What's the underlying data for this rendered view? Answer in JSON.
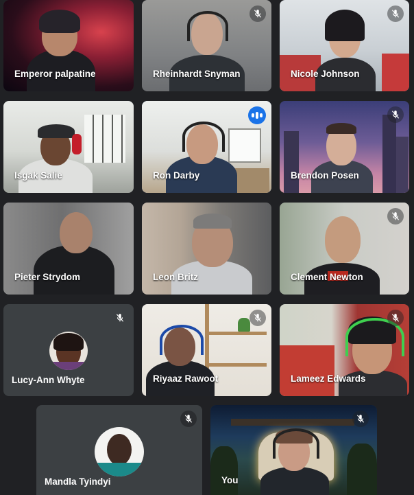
{
  "participants": [
    {
      "name": "Emperor palpatine",
      "muted": false,
      "speaking": false
    },
    {
      "name": "Rheinhardt Snyman",
      "muted": true,
      "speaking": false
    },
    {
      "name": "Nicole Johnson",
      "muted": true,
      "speaking": false
    },
    {
      "name": "Isgak Salie",
      "muted": false,
      "speaking": false
    },
    {
      "name": "Ron Darby",
      "muted": false,
      "speaking": true
    },
    {
      "name": "Brendon Posen",
      "muted": true,
      "speaking": false
    },
    {
      "name": "Pieter Strydom",
      "muted": false,
      "speaking": false
    },
    {
      "name": "Leon Britz",
      "muted": false,
      "speaking": false
    },
    {
      "name": "Clement Newton",
      "muted": true,
      "speaking": false
    },
    {
      "name": "Lucy-Ann Whyte",
      "muted": true,
      "speaking": false
    },
    {
      "name": "Riyaaz Rawoot",
      "muted": true,
      "speaking": false
    },
    {
      "name": "Lameez Edwards",
      "muted": true,
      "speaking": false
    },
    {
      "name": "Mandla Tyindyi",
      "muted": true,
      "speaking": false
    },
    {
      "name": "You",
      "muted": true,
      "speaking": false
    }
  ],
  "icons": {
    "muted": "mic-off-icon",
    "speaking": "audio-level-icon"
  },
  "colors": {
    "background": "#202124",
    "tile": "#3c4043",
    "speaking_outline": "#8ab4f8",
    "speaking_badge": "#1a73e8"
  }
}
